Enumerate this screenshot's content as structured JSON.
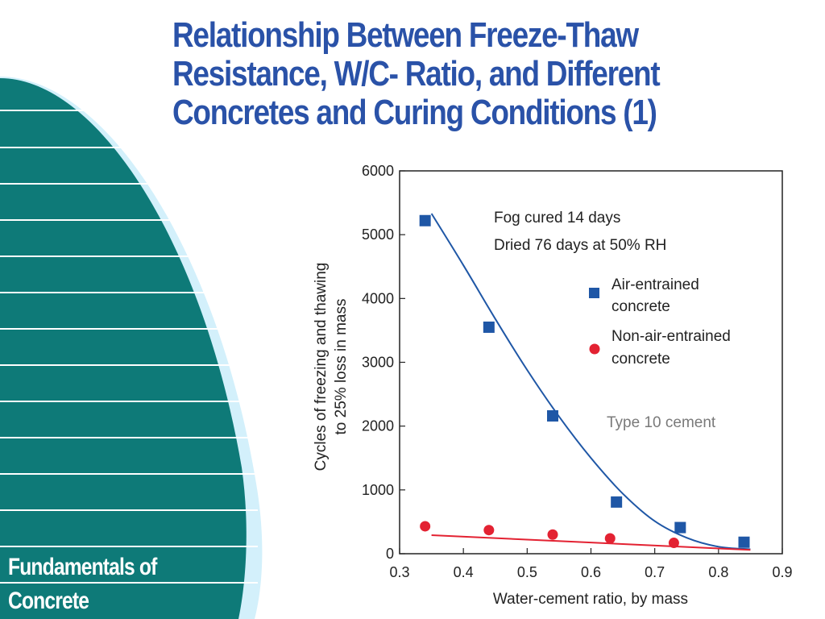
{
  "slide": {
    "title_lines": [
      "Relationship Between Freeze-Thaw",
      "Resistance, W/C- Ratio, and Different",
      "Concretes and Curing Conditions (1)"
    ],
    "footer_lines": [
      "Fundamentals of",
      "Concrete"
    ],
    "colors": {
      "title": "#2a52a8",
      "band": "#0e7a78",
      "band_edge": "#cdeefb"
    }
  },
  "chart_data": {
    "type": "scatter",
    "xlabel": "Water-cement ratio, by mass",
    "ylabel_lines": [
      "Cycles of freezing and thawing",
      "to 25% loss in mass"
    ],
    "xlim": [
      0.3,
      0.9
    ],
    "ylim": [
      0,
      6000
    ],
    "x_ticks": [
      "0.3",
      "0.4",
      "0.5",
      "0.6",
      "0.7",
      "0.8",
      "0.9"
    ],
    "y_ticks": [
      "0",
      "1000",
      "2000",
      "3000",
      "4000",
      "5000",
      "6000"
    ],
    "annotations": [
      "Fog cured 14 days",
      "Dried 76 days at 50% RH"
    ],
    "note": "Type 10 cement",
    "legend": [
      {
        "label_lines": [
          "Air-entrained",
          "concrete"
        ],
        "marker": "square",
        "color": "#1f57a6"
      },
      {
        "label_lines": [
          "Non-air-entrained",
          "concrete"
        ],
        "marker": "circle",
        "color": "#e32232"
      }
    ],
    "series": [
      {
        "marker": "square",
        "color": "#1f57a6",
        "points": [
          [
            0.34,
            5220
          ],
          [
            0.44,
            3550
          ],
          [
            0.54,
            2160
          ],
          [
            0.64,
            810
          ],
          [
            0.74,
            410
          ],
          [
            0.84,
            180
          ]
        ],
        "fit_curve": [
          [
            0.35,
            5330
          ],
          [
            0.4,
            4520
          ],
          [
            0.45,
            3680
          ],
          [
            0.5,
            2880
          ],
          [
            0.55,
            2150
          ],
          [
            0.6,
            1500
          ],
          [
            0.65,
            940
          ],
          [
            0.7,
            510
          ],
          [
            0.75,
            250
          ],
          [
            0.8,
            110
          ],
          [
            0.85,
            70
          ]
        ]
      },
      {
        "marker": "circle",
        "color": "#e32232",
        "points": [
          [
            0.34,
            430
          ],
          [
            0.44,
            370
          ],
          [
            0.54,
            300
          ],
          [
            0.63,
            240
          ],
          [
            0.73,
            170
          ]
        ],
        "fit_curve": [
          [
            0.35,
            290
          ],
          [
            0.85,
            60
          ]
        ]
      }
    ]
  }
}
